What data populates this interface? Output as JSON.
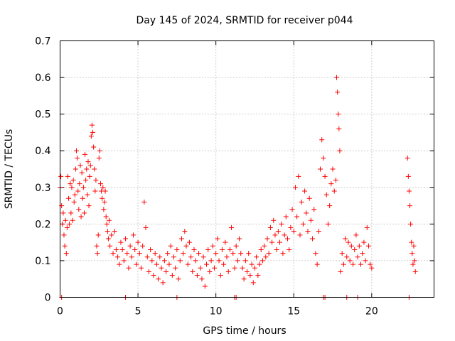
{
  "chart_data": {
    "type": "scatter",
    "title": "Day 145 of 2024, SRMTID for receiver p044",
    "xlabel": "GPS time / hours",
    "ylabel": "SRMTID / TECUs",
    "xlim": [
      0,
      24
    ],
    "ylim": [
      0,
      0.7
    ],
    "xticks": [
      0,
      5,
      10,
      15,
      20
    ],
    "yticks": [
      0,
      0.1,
      0.2,
      0.3,
      0.4,
      0.5,
      0.6,
      0.7
    ],
    "xtick_labels": [
      "0",
      "5",
      "10",
      "15",
      "20"
    ],
    "ytick_labels": [
      "0",
      "0.1",
      "0.2",
      "0.3",
      "0.4",
      "0.5",
      "0.6",
      "0.7"
    ],
    "grid": true,
    "marker": "+",
    "color": "#ff0000",
    "series": [
      {
        "name": "SRMTID",
        "points": [
          [
            0.0,
            0.3
          ],
          [
            0.05,
            0.33
          ],
          [
            0.1,
            0.25
          ],
          [
            0.15,
            0.2
          ],
          [
            0.2,
            0.23
          ],
          [
            0.25,
            0.17
          ],
          [
            0.3,
            0.14
          ],
          [
            0.35,
            0.21
          ],
          [
            0.4,
            0.12
          ],
          [
            0.45,
            0.19
          ],
          [
            0.5,
            0.33
          ],
          [
            0.55,
            0.27
          ],
          [
            0.6,
            0.2
          ],
          [
            0.65,
            0.31
          ],
          [
            0.7,
            0.23
          ],
          [
            0.75,
            0.3
          ],
          [
            0.8,
            0.21
          ],
          [
            0.85,
            0.32
          ],
          [
            0.9,
            0.26
          ],
          [
            0.95,
            0.28
          ],
          [
            1.0,
            0.35
          ],
          [
            1.05,
            0.4
          ],
          [
            1.1,
            0.38
          ],
          [
            1.15,
            0.29
          ],
          [
            1.2,
            0.24
          ],
          [
            1.25,
            0.31
          ],
          [
            1.3,
            0.36
          ],
          [
            1.35,
            0.22
          ],
          [
            1.4,
            0.34
          ],
          [
            1.45,
            0.27
          ],
          [
            1.5,
            0.3
          ],
          [
            1.55,
            0.23
          ],
          [
            1.6,
            0.39
          ],
          [
            1.65,
            0.32
          ],
          [
            1.7,
            0.35
          ],
          [
            1.75,
            0.28
          ],
          [
            1.8,
            0.37
          ],
          [
            1.85,
            0.25
          ],
          [
            1.9,
            0.33
          ],
          [
            1.95,
            0.36
          ],
          [
            2.0,
            0.44
          ],
          [
            2.05,
            0.47
          ],
          [
            2.1,
            0.45
          ],
          [
            2.15,
            0.41
          ],
          [
            2.2,
            0.35
          ],
          [
            2.25,
            0.29
          ],
          [
            2.3,
            0.32
          ],
          [
            2.35,
            0.14
          ],
          [
            2.4,
            0.12
          ],
          [
            2.45,
            0.17
          ],
          [
            2.5,
            0.38
          ],
          [
            2.55,
            0.4
          ],
          [
            2.6,
            0.31
          ],
          [
            2.65,
            0.29
          ],
          [
            2.7,
            0.27
          ],
          [
            2.75,
            0.3
          ],
          [
            2.8,
            0.24
          ],
          [
            2.85,
            0.26
          ],
          [
            2.9,
            0.29
          ],
          [
            2.95,
            0.22
          ],
          [
            3.0,
            0.2
          ],
          [
            3.05,
            0.18
          ],
          [
            3.1,
            0.16
          ],
          [
            3.15,
            0.21
          ],
          [
            3.2,
            0.14
          ],
          [
            3.3,
            0.17
          ],
          [
            3.4,
            0.12
          ],
          [
            3.5,
            0.18
          ],
          [
            3.6,
            0.13
          ],
          [
            3.7,
            0.11
          ],
          [
            3.8,
            0.09
          ],
          [
            3.9,
            0.15
          ],
          [
            4.0,
            0.13
          ],
          [
            4.1,
            0.1
          ],
          [
            4.2,
            0.16
          ],
          [
            4.3,
            0.12
          ],
          [
            4.4,
            0.08
          ],
          [
            4.5,
            0.14
          ],
          [
            4.6,
            0.11
          ],
          [
            4.7,
            0.17
          ],
          [
            4.8,
            0.13
          ],
          [
            4.9,
            0.09
          ],
          [
            5.0,
            0.15
          ],
          [
            5.1,
            0.12
          ],
          [
            5.2,
            0.08
          ],
          [
            5.3,
            0.14
          ],
          [
            5.4,
            0.26
          ],
          [
            5.5,
            0.19
          ],
          [
            5.6,
            0.11
          ],
          [
            5.7,
            0.07
          ],
          [
            5.8,
            0.13
          ],
          [
            5.9,
            0.1
          ],
          [
            6.0,
            0.06
          ],
          [
            6.1,
            0.12
          ],
          [
            6.2,
            0.09
          ],
          [
            6.3,
            0.05
          ],
          [
            6.4,
            0.11
          ],
          [
            6.5,
            0.08
          ],
          [
            6.6,
            0.04
          ],
          [
            6.7,
            0.1
          ],
          [
            6.8,
            0.07
          ],
          [
            6.9,
            0.12
          ],
          [
            7.0,
            0.09
          ],
          [
            7.1,
            0.14
          ],
          [
            7.2,
            0.06
          ],
          [
            7.3,
            0.11
          ],
          [
            7.4,
            0.08
          ],
          [
            7.5,
            0.13
          ],
          [
            7.6,
            0.05
          ],
          [
            7.7,
            0.1
          ],
          [
            7.8,
            0.16
          ],
          [
            7.9,
            0.12
          ],
          [
            8.0,
            0.18
          ],
          [
            8.1,
            0.14
          ],
          [
            8.2,
            0.09
          ],
          [
            8.3,
            0.15
          ],
          [
            8.4,
            0.11
          ],
          [
            8.5,
            0.07
          ],
          [
            8.6,
            0.13
          ],
          [
            8.7,
            0.1
          ],
          [
            8.8,
            0.06
          ],
          [
            8.9,
            0.12
          ],
          [
            9.0,
            0.08
          ],
          [
            9.1,
            0.05
          ],
          [
            9.2,
            0.11
          ],
          [
            9.3,
            0.03
          ],
          [
            9.4,
            0.09
          ],
          [
            9.5,
            0.13
          ],
          [
            9.6,
            0.07
          ],
          [
            9.7,
            0.1
          ],
          [
            9.8,
            0.14
          ],
          [
            9.9,
            0.08
          ],
          [
            10.0,
            0.12
          ],
          [
            10.1,
            0.16
          ],
          [
            10.2,
            0.1
          ],
          [
            10.3,
            0.06
          ],
          [
            10.4,
            0.13
          ],
          [
            10.5,
            0.09
          ],
          [
            10.6,
            0.15
          ],
          [
            10.7,
            0.11
          ],
          [
            10.8,
            0.07
          ],
          [
            10.9,
            0.13
          ],
          [
            11.0,
            0.19
          ],
          [
            11.1,
            0.12
          ],
          [
            11.2,
            0.08
          ],
          [
            11.3,
            0.14
          ],
          [
            11.4,
            0.1
          ],
          [
            11.5,
            0.16
          ],
          [
            11.6,
            0.12
          ],
          [
            11.7,
            0.08
          ],
          [
            11.8,
            0.05
          ],
          [
            11.9,
            0.1
          ],
          [
            12.0,
            0.07
          ],
          [
            12.1,
            0.12
          ],
          [
            12.2,
            0.06
          ],
          [
            12.3,
            0.09
          ],
          [
            12.4,
            0.04
          ],
          [
            12.5,
            0.08
          ],
          [
            12.6,
            0.11
          ],
          [
            12.7,
            0.06
          ],
          [
            12.8,
            0.09
          ],
          [
            12.9,
            0.13
          ],
          [
            13.0,
            0.1
          ],
          [
            13.1,
            0.14
          ],
          [
            13.2,
            0.11
          ],
          [
            13.3,
            0.16
          ],
          [
            13.4,
            0.12
          ],
          [
            13.5,
            0.19
          ],
          [
            13.6,
            0.15
          ],
          [
            13.7,
            0.21
          ],
          [
            13.8,
            0.17
          ],
          [
            13.9,
            0.13
          ],
          [
            14.0,
            0.18
          ],
          [
            14.1,
            0.15
          ],
          [
            14.2,
            0.2
          ],
          [
            14.3,
            0.12
          ],
          [
            14.4,
            0.17
          ],
          [
            14.5,
            0.22
          ],
          [
            14.6,
            0.16
          ],
          [
            14.7,
            0.13
          ],
          [
            14.8,
            0.19
          ],
          [
            14.9,
            0.24
          ],
          [
            15.0,
            0.18
          ],
          [
            15.1,
            0.3
          ],
          [
            15.2,
            0.22
          ],
          [
            15.3,
            0.33
          ],
          [
            15.4,
            0.17
          ],
          [
            15.5,
            0.26
          ],
          [
            15.6,
            0.2
          ],
          [
            15.7,
            0.29
          ],
          [
            15.8,
            0.23
          ],
          [
            15.9,
            0.18
          ],
          [
            16.0,
            0.27
          ],
          [
            16.1,
            0.21
          ],
          [
            16.2,
            0.16
          ],
          [
            16.3,
            0.24
          ],
          [
            16.4,
            0.12
          ],
          [
            16.5,
            0.09
          ],
          [
            16.6,
            0.18
          ],
          [
            16.7,
            0.35
          ],
          [
            16.8,
            0.43
          ],
          [
            16.9,
            0.38
          ],
          [
            17.0,
            0.33
          ],
          [
            17.1,
            0.28
          ],
          [
            17.2,
            0.2
          ],
          [
            17.3,
            0.25
          ],
          [
            17.4,
            0.31
          ],
          [
            17.5,
            0.35
          ],
          [
            17.6,
            0.29
          ],
          [
            17.7,
            0.32
          ],
          [
            17.75,
            0.6
          ],
          [
            17.8,
            0.56
          ],
          [
            17.85,
            0.5
          ],
          [
            17.9,
            0.46
          ],
          [
            17.95,
            0.4
          ],
          [
            18.0,
            0.07
          ],
          [
            18.1,
            0.12
          ],
          [
            18.2,
            0.09
          ],
          [
            18.3,
            0.16
          ],
          [
            18.4,
            0.11
          ],
          [
            18.5,
            0.15
          ],
          [
            18.6,
            0.1
          ],
          [
            18.7,
            0.14
          ],
          [
            18.8,
            0.09
          ],
          [
            18.9,
            0.13
          ],
          [
            19.0,
            0.17
          ],
          [
            19.1,
            0.11
          ],
          [
            19.2,
            0.14
          ],
          [
            19.3,
            0.09
          ],
          [
            19.4,
            0.12
          ],
          [
            19.5,
            0.15
          ],
          [
            19.6,
            0.1
          ],
          [
            19.7,
            0.19
          ],
          [
            19.8,
            0.14
          ],
          [
            19.9,
            0.09
          ],
          [
            20.0,
            0.08
          ],
          [
            22.3,
            0.38
          ],
          [
            22.35,
            0.33
          ],
          [
            22.4,
            0.29
          ],
          [
            22.45,
            0.25
          ],
          [
            22.5,
            0.2
          ],
          [
            22.55,
            0.15
          ],
          [
            22.6,
            0.12
          ],
          [
            22.65,
            0.09
          ],
          [
            22.7,
            0.14
          ],
          [
            22.75,
            0.1
          ],
          [
            22.8,
            0.07
          ]
        ]
      }
    ],
    "zero_markers": [
      0.1,
      4.2,
      7.5,
      11.2,
      11.3,
      16.9,
      17.0,
      18.4,
      19.1,
      22.4
    ]
  }
}
